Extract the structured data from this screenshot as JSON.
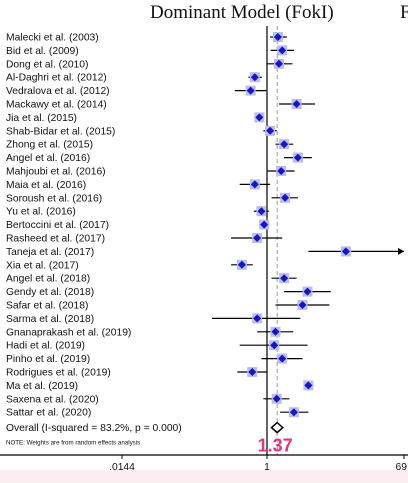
{
  "chart_data": {
    "type": "forest",
    "title": "Dominant Model (FokI)",
    "title_cut": "F",
    "x_scale": "log",
    "xlim": [
      0.0144,
      69.4
    ],
    "x_tick_labels": [
      ".0144",
      "1",
      "69"
    ],
    "x_tick_values": [
      0.0144,
      1,
      69.4
    ],
    "null_line": 1,
    "pooled_line": 1.37,
    "pooled_label": "1.37",
    "note": "NOTE: Weights are from random effects analysis",
    "overall": {
      "label": "Overall  (I-squared = 83.2%, p = 0.000)",
      "or": 1.37,
      "lo": 1.15,
      "hi": 1.63
    },
    "studies": [
      {
        "label": "Malecki et al. (2003)",
        "or": 1.4,
        "lo": 1.1,
        "hi": 1.85
      },
      {
        "label": "Bid et al. (2009)",
        "or": 1.6,
        "lo": 1.12,
        "hi": 2.3
      },
      {
        "label": "Dong  et al. (2010)",
        "or": 1.45,
        "lo": 0.98,
        "hi": 2.2
      },
      {
        "label": "Al-Daghri et al. (2012)",
        "or": 0.7,
        "lo": 0.58,
        "hi": 0.86
      },
      {
        "label": "Vedralova et al. (2012)",
        "or": 0.62,
        "lo": 0.39,
        "hi": 0.98
      },
      {
        "label": "Mackawy et al. (2014)",
        "or": 2.5,
        "lo": 1.45,
        "hi": 4.4
      },
      {
        "label": "Jia et al. (2015)",
        "or": 0.8,
        "lo": 0.74,
        "hi": 0.88
      },
      {
        "label": "Shab-Bidar et al. (2015)",
        "or": 1.1,
        "lo": 0.9,
        "hi": 1.35
      },
      {
        "label": "Zhong et al. (2015)",
        "or": 1.7,
        "lo": 1.3,
        "hi": 2.25
      },
      {
        "label": "Angel et al. (2016)",
        "or": 2.6,
        "lo": 1.7,
        "hi": 4.0
      },
      {
        "label": "Mahjoubi et al. (2016)",
        "or": 1.55,
        "lo": 1.02,
        "hi": 2.35
      },
      {
        "label": "Maia et al. (2016)",
        "or": 0.7,
        "lo": 0.45,
        "hi": 1.1
      },
      {
        "label": "Soroush et al. (2016)",
        "or": 1.75,
        "lo": 1.15,
        "hi": 2.6
      },
      {
        "label": "Yu et al. (2016)",
        "or": 0.85,
        "lo": 0.68,
        "hi": 1.06
      },
      {
        "label": "Bertoccini et al. (2017)",
        "or": 0.92,
        "lo": 0.8,
        "hi": 1.05
      },
      {
        "label": "Rasheed et al. (2017)",
        "or": 0.75,
        "lo": 0.35,
        "hi": 1.6
      },
      {
        "label": "Taneja et al. (2017)",
        "or": 11.5,
        "lo": 3.6,
        "hi": 69.4
      },
      {
        "label": "Xia et al. (2017)",
        "or": 0.48,
        "lo": 0.35,
        "hi": 0.66
      },
      {
        "label": "Angel et al. (2018)",
        "or": 1.7,
        "lo": 1.15,
        "hi": 2.5
      },
      {
        "label": "Gendy et al. (2018)",
        "or": 3.5,
        "lo": 1.7,
        "hi": 7.2
      },
      {
        "label": "Safar et al. (2018)",
        "or": 3.0,
        "lo": 1.3,
        "hi": 6.9
      },
      {
        "label": "Sarma et al. (2018)",
        "or": 0.75,
        "lo": 0.2,
        "hi": 2.8
      },
      {
        "label": "Gnanaprakash et al. (2019)",
        "or": 1.3,
        "lo": 0.75,
        "hi": 2.25
      },
      {
        "label": "Hadi et al. (2019)",
        "or": 1.25,
        "lo": 0.45,
        "hi": 3.5
      },
      {
        "label": "Pinho et al. (2019)",
        "or": 1.6,
        "lo": 0.85,
        "hi": 3.0
      },
      {
        "label": "Rodrigues et al. (2019)",
        "or": 0.65,
        "lo": 0.42,
        "hi": 1.0
      },
      {
        "label": "Ma et al. (2019)",
        "or": 3.6,
        "lo": 3.1,
        "hi": 4.2
      },
      {
        "label": "Saxena et al. (2020)",
        "or": 1.35,
        "lo": 0.9,
        "hi": 2.0
      },
      {
        "label": "Sattar et al. (2020)",
        "or": 2.3,
        "lo": 1.5,
        "hi": 3.6
      }
    ],
    "colors": {
      "marker": "#1414c8",
      "weight_box": "#b9bde8",
      "ci_line": "#000000",
      "null_line": "#000000",
      "pooled_line": "#9a9a9a",
      "pooled_label": "#e8337a",
      "background_band": "#fbeef1"
    }
  }
}
